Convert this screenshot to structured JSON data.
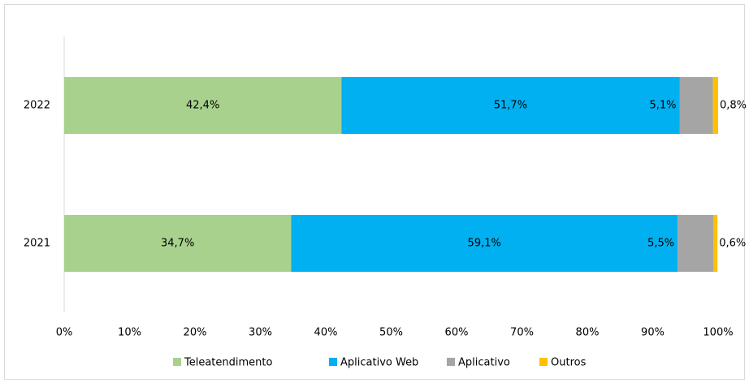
{
  "chart_data": {
    "type": "stacked_barh",
    "categories": [
      "2022",
      "2021"
    ],
    "series": [
      {
        "name": "Teleatendimento",
        "color": "#a9d18e",
        "values": [
          42.4,
          34.7
        ],
        "value_labels": [
          "42,4%",
          "34,7%"
        ]
      },
      {
        "name": "Aplicativo Web",
        "color": "#00b0f0",
        "values": [
          51.7,
          59.1
        ],
        "value_labels": [
          "51,7%",
          "59,1%"
        ]
      },
      {
        "name": "Aplicativo",
        "color": "#a5a5a5",
        "values": [
          5.1,
          5.5
        ],
        "value_labels": [
          "5,1%",
          "5,5%"
        ]
      },
      {
        "name": "Outros",
        "color": "#ffc000",
        "values": [
          0.8,
          0.6
        ],
        "value_labels": [
          "0,8%",
          "0,6%"
        ]
      }
    ],
    "xlim": [
      0,
      100
    ],
    "xticks": [
      {
        "value": 0,
        "label": "0%"
      },
      {
        "value": 10,
        "label": "10%"
      },
      {
        "value": 20,
        "label": "20%"
      },
      {
        "value": 30,
        "label": "30%"
      },
      {
        "value": 40,
        "label": "40%"
      },
      {
        "value": 50,
        "label": "50%"
      },
      {
        "value": 60,
        "label": "60%"
      },
      {
        "value": 70,
        "label": "70%"
      },
      {
        "value": 80,
        "label": "80%"
      },
      {
        "value": 90,
        "label": "90%"
      },
      {
        "value": 100,
        "label": "100%"
      }
    ],
    "legend": "bottom",
    "grid": false
  }
}
